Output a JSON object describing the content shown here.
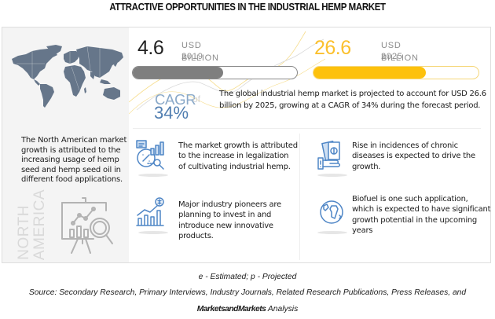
{
  "title": "ATTRACTIVE OPPORTUNITIES IN THE INDUSTRIAL HEMP MARKET",
  "region": {
    "label_line1": "NORTH",
    "label_line2": "AMERICA",
    "description": "The North American market growth is attributed to the increasing usage of hemp seed and hemp seed oil in different food applications.",
    "map_icon": "world-map-icon",
    "illustration_icon": "presentation-analytics-icon"
  },
  "stats": [
    {
      "value": "4.6",
      "unit": "USD BILLION",
      "year": "2019",
      "bar_fill_percent": 55,
      "color": "#222222",
      "bar_color": "#7f7f7f"
    },
    {
      "value": "26.6",
      "unit": "USD BILLION",
      "year": "2025",
      "bar_fill_percent": 68,
      "color": "#fbc02d",
      "bar_color": "#fdc10c"
    }
  ],
  "cagr": {
    "label": "CAGR",
    "of": "of",
    "value": "34%",
    "description": "The global industrial hemp market is projected to account for USD 26.6 billion by 2025, growing at a CAGR of 34% during the forecast period."
  },
  "points": [
    {
      "icon": "analytics-report-icon",
      "text": "The market growth is attributed to the increase in legalization of cultivating industrial hemp."
    },
    {
      "icon": "money-hand-icon",
      "text": "Rise in incidences of chronic diseases is expected to drive the growth."
    },
    {
      "icon": "growth-chart-dollar-icon",
      "text": "Major industry pioneers are planning to invest in and introduce new innovative products."
    },
    {
      "icon": "globe-icon",
      "text": "Biofuel is one such application, which is expected to have significant growth potential in the upcoming years"
    }
  ],
  "footer": {
    "legend": "e - Estimated; p - Projected",
    "source": "Source: Secondary Research, Primary Interviews, Industry Journals, Related Research Publications, Press Releases, and",
    "brand": "MarketsandMarkets",
    "analysis": " Analysis"
  },
  "colors": {
    "accent_yellow": "#fdc10c",
    "accent_blue": "#4f7db0",
    "icon_blue": "#4f86c6",
    "gray_bar": "#7f7f7f",
    "map_gray": "#66768a"
  }
}
